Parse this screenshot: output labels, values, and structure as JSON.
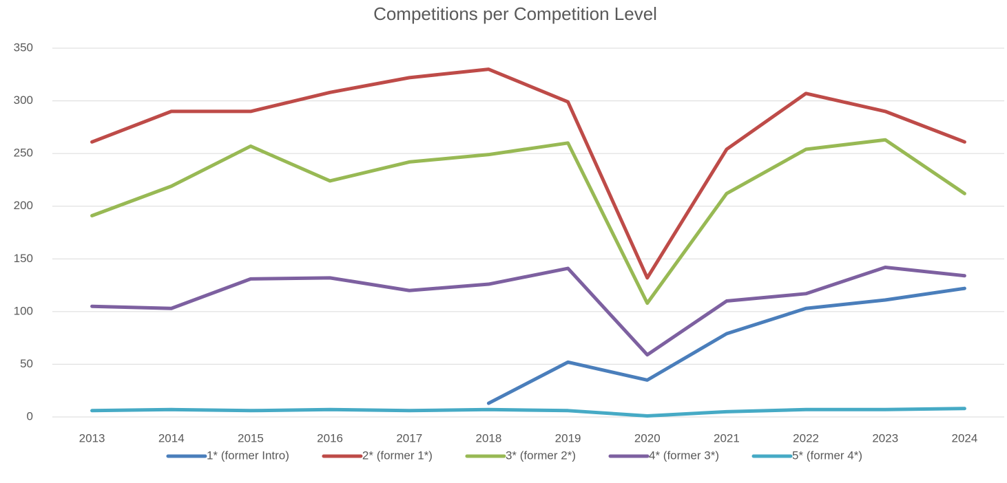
{
  "chart_data": {
    "type": "line",
    "title": "Competitions per Competition Level",
    "categories": [
      "2013",
      "2014",
      "2015",
      "2016",
      "2017",
      "2018",
      "2019",
      "2020",
      "2021",
      "2022",
      "2023",
      "2024"
    ],
    "series": [
      {
        "name": "1* (former Intro)",
        "color": "#4a7ebb",
        "values": [
          null,
          null,
          null,
          null,
          null,
          13,
          52,
          35,
          79,
          103,
          111,
          122
        ]
      },
      {
        "name": "2* (former 1*)",
        "color": "#be4b48",
        "values": [
          261,
          290,
          290,
          308,
          322,
          330,
          299,
          132,
          254,
          307,
          290,
          261
        ]
      },
      {
        "name": "3* (former 2*)",
        "color": "#98b954",
        "values": [
          191,
          219,
          257,
          224,
          242,
          249,
          260,
          108,
          212,
          254,
          263,
          212
        ]
      },
      {
        "name": "4* (former 3*)",
        "color": "#7d60a0",
        "values": [
          105,
          103,
          131,
          132,
          120,
          126,
          141,
          59,
          110,
          117,
          142,
          134
        ]
      },
      {
        "name": "5* (former 4*)",
        "color": "#46aac5",
        "values": [
          6,
          7,
          6,
          7,
          6,
          7,
          6,
          1,
          5,
          7,
          7,
          8
        ]
      }
    ],
    "ylim": [
      0,
      350
    ],
    "yticks": [
      0,
      50,
      100,
      150,
      200,
      250,
      300,
      350
    ],
    "grid": true,
    "legend": "bottom"
  }
}
